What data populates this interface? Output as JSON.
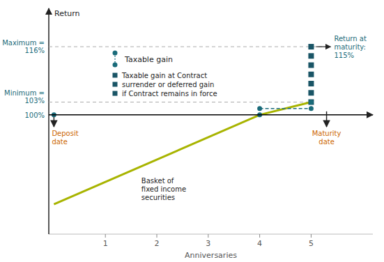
{
  "chart_data": {
    "type": "line",
    "ylabel": "Return",
    "xlabel": "Anniversaries",
    "xlim": [
      -0.1,
      6.2
    ],
    "ylim": [
      72,
      125
    ],
    "xticks": [
      1,
      2,
      3,
      4,
      5
    ],
    "series": [
      {
        "type": "line",
        "color": "#a8b400",
        "x": [
          0,
          4,
          5
        ],
        "values": [
          79,
          100,
          103
        ]
      },
      {
        "type": "line",
        "color": "#1a6b7a",
        "line_style": "dashed",
        "x": [
          4,
          5
        ],
        "values": [
          101.5,
          101.5
        ]
      },
      {
        "type": "scatter",
        "color": "#1a5566",
        "marker": "square",
        "x": [
          5,
          5,
          5,
          5,
          5,
          5,
          5
        ],
        "values": [
          103,
          105.16666666666667,
          107.33333333333333,
          109.5,
          111.66666666666667,
          113.83333333333333,
          116
        ]
      },
      {
        "type": "scatter",
        "color": "#1a6b7a",
        "marker": "circle",
        "x": [
          0,
          4,
          4,
          5,
          5
        ],
        "values": [
          100,
          100,
          101.5,
          101.5,
          103
        ]
      }
    ],
    "reference_lines": [
      {
        "y": 100,
        "color": "#000000",
        "label": "100%"
      },
      {
        "y": 116,
        "color": "#aaaaaa",
        "line_style": "dashed",
        "xmax": 5.3,
        "label": "Maximum =\n116%"
      },
      {
        "y": 103,
        "color": "#aaaaaa",
        "line_style": "dashed",
        "xmax": 5,
        "label": "Minimum =\n103%"
      }
    ],
    "annotations": [
      {
        "text": "Basket of\nfixed income\nsecurities"
      },
      {
        "text": "Return at\nmaturity:\n115%",
        "x": 5,
        "y": 116
      },
      {
        "text": "Deposit\ndate",
        "x": 0
      },
      {
        "text": "Maturity\ndate",
        "x": 5.3
      },
      {
        "text": "Taxable gain",
        "marker": "circle",
        "color": "#1a6b7a"
      },
      {
        "lines": [
          "Taxable gain at Contract",
          "surrender or deferred gain",
          "if Contract remains in force"
        ],
        "marker": "square",
        "color": "#1a5566"
      }
    ]
  }
}
